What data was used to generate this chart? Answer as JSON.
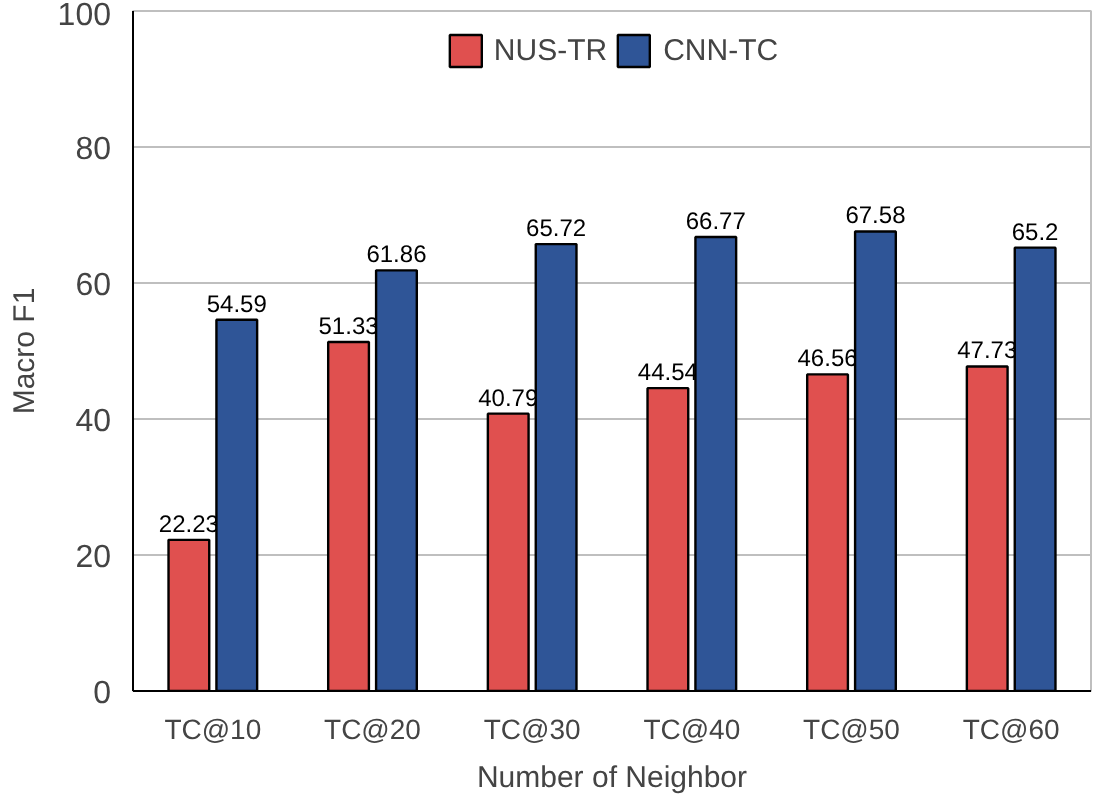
{
  "chart_data": {
    "type": "bar",
    "xlabel": "Number of Neighbor",
    "ylabel": "Macro F1",
    "categories": [
      "TC@10",
      "TC@20",
      "TC@30",
      "TC@40",
      "TC@50",
      "TC@60"
    ],
    "series": [
      {
        "name": "NUS-TR",
        "color": "#e0504f",
        "values": [
          22.23,
          51.33,
          40.79,
          44.54,
          46.56,
          47.73
        ]
      },
      {
        "name": "CNN-TC",
        "color": "#2f5597",
        "values": [
          54.59,
          61.86,
          65.72,
          66.77,
          67.58,
          65.2
        ]
      }
    ],
    "ylim": [
      0,
      100
    ],
    "yticks": [
      0,
      20,
      40,
      60,
      80,
      100
    ],
    "grid": "y",
    "legend": "top",
    "data_labels": true
  }
}
